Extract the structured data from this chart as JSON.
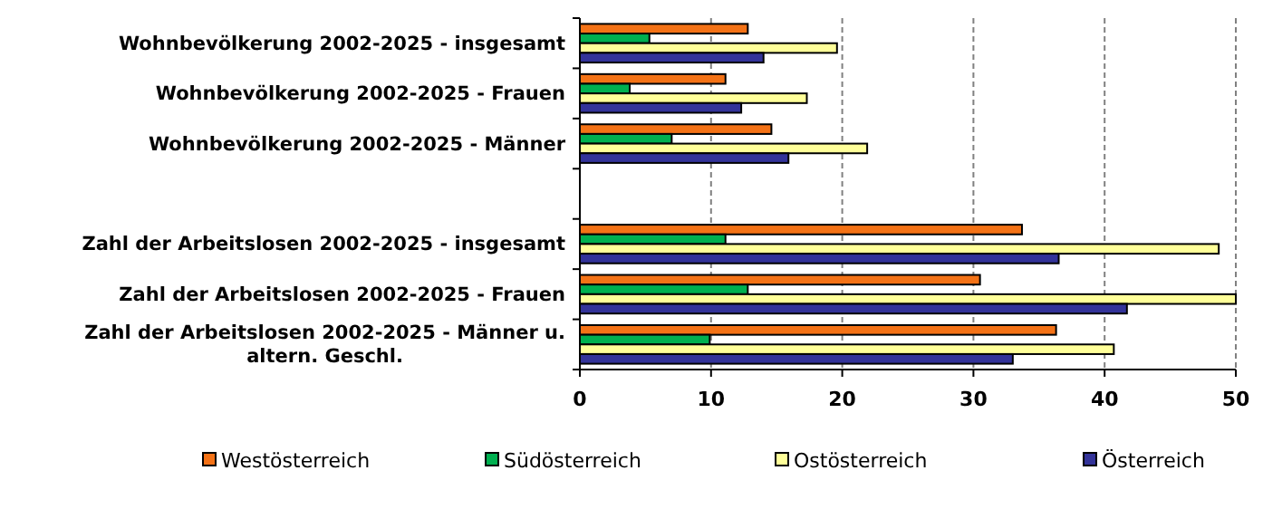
{
  "chart_data": {
    "type": "bar",
    "orientation": "horizontal",
    "categories": [
      "Wohnbevölkerung 2002-2025 - insgesamt",
      "Wohnbevölkerung 2002-2025 - Frauen",
      "Wohnbevölkerung 2002-2025 - Männer",
      null,
      "Zahl der Arbeitslosen 2002-2025 - insgesamt",
      "Zahl der Arbeitslosen 2002-2025 - Frauen",
      "Zahl der Arbeitslosen 2002-2025 - Männer u. altern. Geschl."
    ],
    "series": [
      {
        "name": "Westösterreich",
        "color": "#f47216",
        "values": [
          12.8,
          11.1,
          14.6,
          null,
          33.7,
          30.5,
          36.3
        ]
      },
      {
        "name": "Südösterreich",
        "color": "#00b050",
        "values": [
          5.3,
          3.8,
          7.0,
          null,
          11.1,
          12.8,
          9.9
        ]
      },
      {
        "name": "Ostösterreich",
        "color": "#ffff99",
        "values": [
          19.6,
          17.3,
          21.9,
          null,
          48.7,
          50,
          40.7
        ]
      },
      {
        "name": "Österreich",
        "color": "#333399",
        "values": [
          14.0,
          12.3,
          15.9,
          null,
          36.5,
          41.7,
          33.0
        ]
      }
    ],
    "xlim": [
      0,
      50
    ],
    "xticks": [
      0,
      10,
      20,
      30,
      40,
      50
    ],
    "grid": "x",
    "legend": "bottom"
  }
}
